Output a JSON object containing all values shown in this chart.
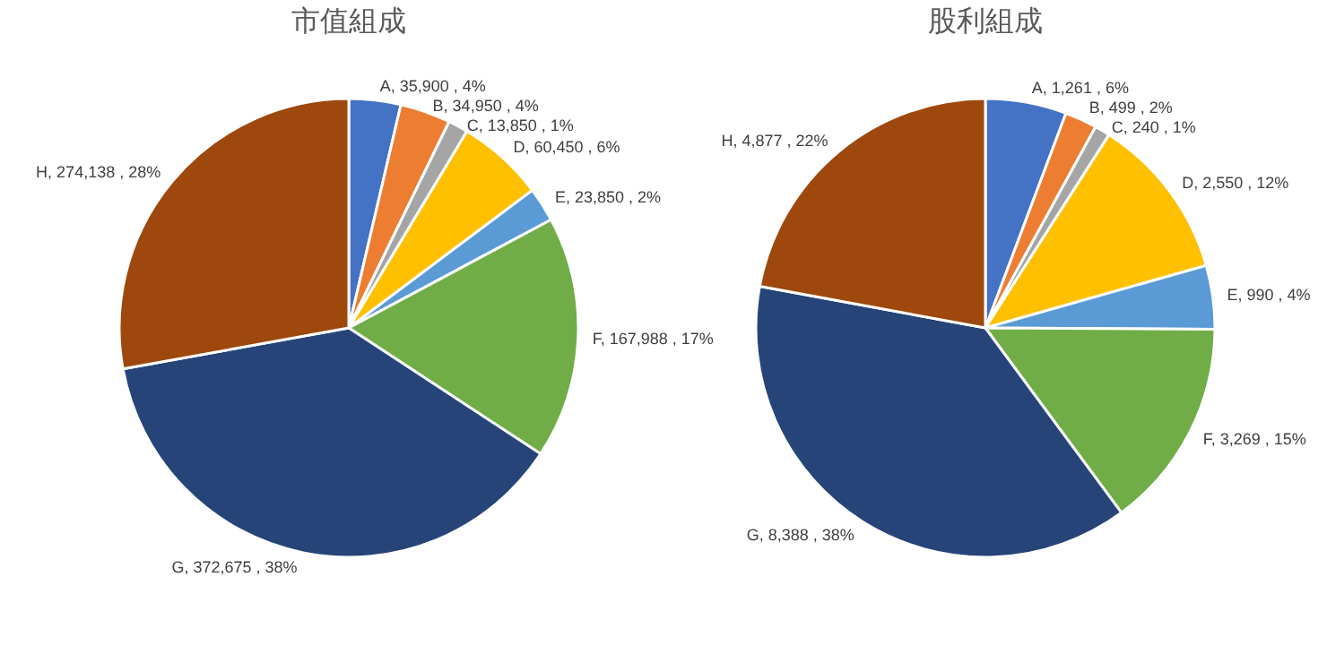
{
  "chart_data": [
    {
      "type": "pie",
      "title": "市值組成",
      "categories": [
        "A",
        "B",
        "C",
        "D",
        "E",
        "F",
        "G",
        "H"
      ],
      "values": [
        35900,
        34950,
        13850,
        60450,
        23850,
        167988,
        372675,
        274138
      ],
      "colors": [
        "#4472c4",
        "#ed7d31",
        "#a5a5a5",
        "#ffc000",
        "#5b9bd5",
        "#70ad47",
        "#264478",
        "#9e480e"
      ],
      "value_labels": [
        "35,900 , 4%",
        "34,950 , 4%",
        "13,850 , 1%",
        "60,450 , 6%",
        "23,850 , 2%",
        "167,988 , 17%",
        "372,675 , 38%",
        "274,138 , 28%"
      ]
    },
    {
      "type": "pie",
      "title": "股利組成",
      "categories": [
        "A",
        "B",
        "C",
        "D",
        "E",
        "F",
        "G",
        "H"
      ],
      "values": [
        1261,
        499,
        240,
        2550,
        990,
        3269,
        8388,
        4877
      ],
      "colors": [
        "#4472c4",
        "#ed7d31",
        "#a5a5a5",
        "#ffc000",
        "#5b9bd5",
        "#70ad47",
        "#264478",
        "#9e480e"
      ],
      "value_labels": [
        "1,261 , 6%",
        "499 , 2%",
        "240 , 1%",
        "2,550 , 12%",
        "990 , 4%",
        "3,269 , 15%",
        "8,388 , 38%",
        "4,877 , 22%"
      ]
    }
  ]
}
